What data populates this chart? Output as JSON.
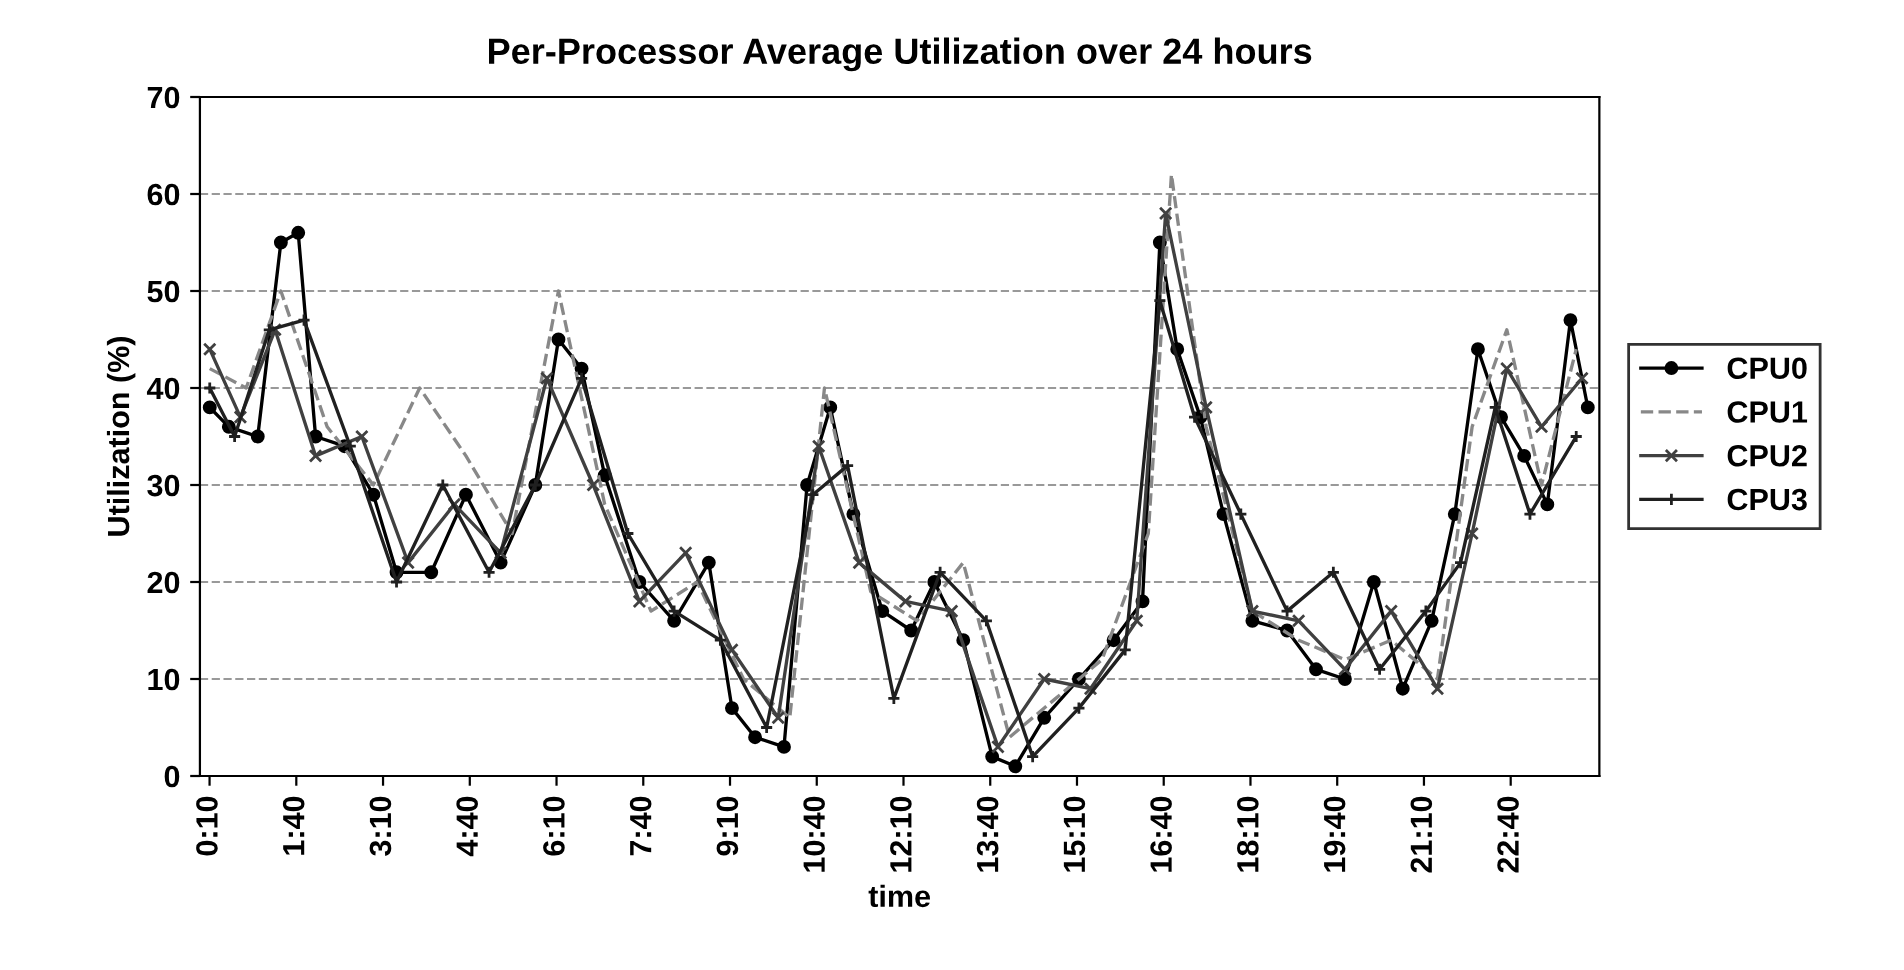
{
  "chart_data": {
    "type": "line",
    "title": "Per-Processor Average Utilization over 24 hours",
    "xlabel": "time",
    "ylabel": "Utilization (%)",
    "xlim": [
      0.0,
      24.2
    ],
    "xticks": [
      {
        "value": 0.1667,
        "label": "0:10"
      },
      {
        "value": 1.6667,
        "label": "1:40"
      },
      {
        "value": 3.1667,
        "label": "3:10"
      },
      {
        "value": 4.6667,
        "label": "4:40"
      },
      {
        "value": 6.1667,
        "label": "6:10"
      },
      {
        "value": 7.6667,
        "label": "7:40"
      },
      {
        "value": 9.1667,
        "label": "9:10"
      },
      {
        "value": 10.6667,
        "label": "10:40"
      },
      {
        "value": 12.1667,
        "label": "12:10"
      },
      {
        "value": 13.6667,
        "label": "13:40"
      },
      {
        "value": 15.1667,
        "label": "15:10"
      },
      {
        "value": 16.6667,
        "label": "16:40"
      },
      {
        "value": 18.1667,
        "label": "18:10"
      },
      {
        "value": 19.6667,
        "label": "19:40"
      },
      {
        "value": 21.1667,
        "label": "21:10"
      },
      {
        "value": 22.6667,
        "label": "22:40"
      }
    ],
    "ylim": [
      0,
      70
    ],
    "yticks": [
      0,
      10,
      20,
      30,
      40,
      50,
      60,
      70
    ],
    "grid": "y",
    "legend": "right",
    "series": [
      {
        "name": "CPU0",
        "color": "#000000",
        "marker": "circle",
        "line_style": "solid",
        "x": [
          0.17,
          0.5,
          1.0,
          1.4,
          1.7,
          2.0,
          2.5,
          3.0,
          3.4,
          4.0,
          4.6,
          5.2,
          5.8,
          6.2,
          6.6,
          7.0,
          7.6,
          8.2,
          8.8,
          9.2,
          9.6,
          10.1,
          10.5,
          10.9,
          11.3,
          11.8,
          12.3,
          12.7,
          13.2,
          13.7,
          14.1,
          14.6,
          15.2,
          15.8,
          16.3,
          16.6,
          16.9,
          17.3,
          17.7,
          18.2,
          18.8,
          19.3,
          19.8,
          20.3,
          20.8,
          21.3,
          21.7,
          22.1,
          22.5,
          22.9,
          23.3,
          23.7,
          24.0
        ],
        "values": [
          38,
          36,
          35,
          55,
          56,
          35,
          34,
          29,
          21,
          21,
          29,
          22,
          30,
          45,
          42,
          31,
          20,
          16,
          22,
          7,
          4,
          3,
          30,
          38,
          27,
          17,
          15,
          20,
          14,
          2,
          1,
          6,
          10,
          14,
          18,
          55,
          44,
          37,
          27,
          16,
          15,
          11,
          10,
          20,
          9,
          16,
          27,
          44,
          37,
          33,
          28,
          47,
          38
        ]
      },
      {
        "name": "CPU1",
        "color": "#888888",
        "marker": "none",
        "line_style": "dashed",
        "x": [
          0.17,
          0.8,
          1.4,
          2.2,
          3.0,
          3.8,
          4.6,
          5.4,
          6.2,
          7.0,
          7.8,
          8.6,
          9.4,
          10.2,
          10.8,
          11.6,
          12.4,
          13.2,
          14.0,
          14.8,
          15.6,
          16.4,
          16.8,
          17.4,
          18.2,
          19.0,
          19.8,
          20.6,
          21.4,
          22.0,
          22.6,
          23.2,
          23.8
        ],
        "values": [
          42,
          40,
          50,
          36,
          30,
          40,
          33,
          25,
          50,
          28,
          17,
          20,
          10,
          6,
          40,
          19,
          16,
          22,
          4,
          8,
          12,
          25,
          62,
          36,
          17,
          14,
          12,
          14,
          10,
          36,
          46,
          30,
          44
        ]
      },
      {
        "name": "CPU2",
        "color": "#404040",
        "marker": "cross",
        "line_style": "solid",
        "x": [
          0.17,
          0.7,
          1.3,
          2.0,
          2.8,
          3.6,
          4.4,
          5.2,
          6.0,
          6.8,
          7.6,
          8.4,
          9.2,
          10.0,
          10.7,
          11.4,
          12.2,
          13.0,
          13.8,
          14.6,
          15.4,
          16.2,
          16.7,
          17.4,
          18.2,
          19.0,
          19.8,
          20.6,
          21.4,
          22.0,
          22.6,
          23.2,
          23.9
        ],
        "values": [
          44,
          37,
          46,
          33,
          35,
          22,
          28,
          23,
          41,
          30,
          18,
          23,
          13,
          6,
          34,
          22,
          18,
          17,
          3,
          10,
          9,
          16,
          58,
          38,
          17,
          16,
          11,
          17,
          9,
          25,
          42,
          36,
          41
        ]
      },
      {
        "name": "CPU3",
        "color": "#202020",
        "marker": "plus",
        "line_style": "solid",
        "x": [
          0.17,
          0.6,
          1.2,
          1.8,
          2.6,
          3.4,
          4.2,
          5.0,
          5.8,
          6.6,
          7.4,
          8.2,
          9.0,
          9.8,
          10.6,
          11.2,
          12.0,
          12.8,
          13.6,
          14.4,
          15.2,
          16.0,
          16.6,
          17.2,
          18.0,
          18.8,
          19.6,
          20.4,
          21.2,
          21.8,
          22.4,
          23.0,
          23.8
        ],
        "values": [
          40,
          35,
          46,
          47,
          34,
          20,
          30,
          21,
          30,
          41,
          25,
          17,
          14,
          5,
          29,
          32,
          8,
          21,
          16,
          2,
          7,
          13,
          49,
          37,
          27,
          17,
          21,
          11,
          17,
          22,
          38,
          27,
          35
        ]
      }
    ]
  }
}
